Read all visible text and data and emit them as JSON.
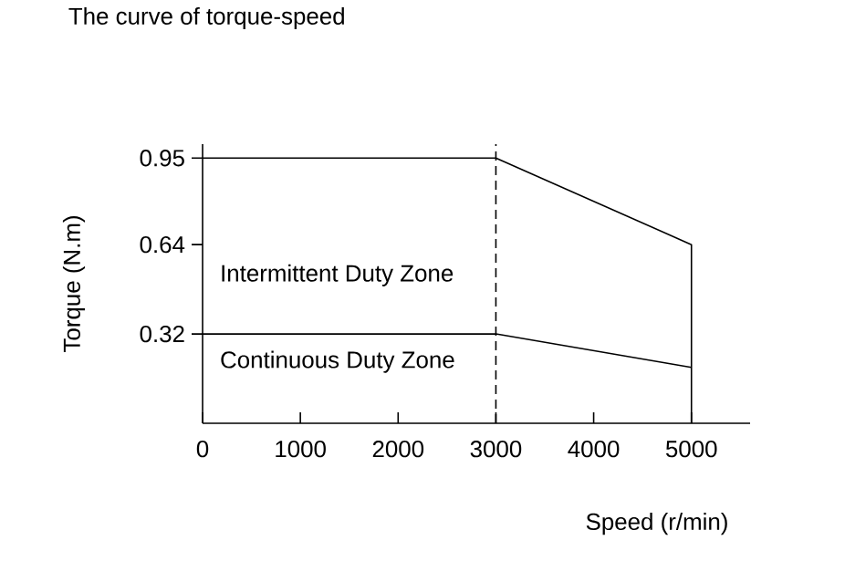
{
  "chart_data": {
    "type": "line",
    "title": "The curve of torque-speed",
    "xlabel": "Speed (r/min)",
    "ylabel": "Torque (N.m)",
    "xlim": [
      0,
      5600
    ],
    "ylim": [
      0,
      1.0
    ],
    "xticks": [
      0,
      1000,
      2000,
      3000,
      4000,
      5000
    ],
    "yticks": [
      0.32,
      0.64,
      0.95
    ],
    "series": [
      {
        "color": "#000000",
        "x": [
          0,
          3000,
          5000,
          5000
        ],
        "values": [
          0.95,
          0.95,
          0.64,
          0
        ]
      },
      {
        "color": "#000000",
        "x": [
          0,
          3000,
          5000
        ],
        "values": [
          0.32,
          0.32,
          0.2
        ]
      }
    ],
    "ref_lines": [
      {
        "axis": "x",
        "value": 3000,
        "color": "#000000",
        "line_style": "dashed"
      }
    ],
    "annotations": [
      "Intermittent Duty Zone",
      "Continuous Duty Zone"
    ],
    "marker": "none",
    "line_style": "solid"
  }
}
